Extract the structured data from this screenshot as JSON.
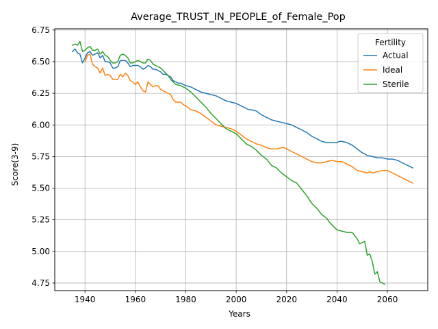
{
  "chart_data": {
    "type": "line",
    "title": "Average_TRUST_IN_PEOPLE_of_Female_Pop",
    "xlabel": "Years",
    "ylabel": "Score(3-9)",
    "xlim": [
      1928,
      2076
    ],
    "ylim": [
      4.69,
      6.76
    ],
    "xticks": [
      1940,
      1960,
      1980,
      2000,
      2020,
      2040,
      2060
    ],
    "yticks": [
      4.75,
      5.0,
      5.25,
      5.5,
      5.75,
      6.0,
      6.25,
      6.5,
      6.75
    ],
    "ytick_labels": [
      "4.75",
      "5.00",
      "5.25",
      "5.50",
      "5.75",
      "6.00",
      "6.25",
      "6.50",
      "6.75"
    ],
    "grid": true,
    "legend": {
      "title": "Fertility",
      "placement": "top-right"
    },
    "series": [
      {
        "name": "Actual",
        "color": "#1f77b4",
        "points": [
          [
            1935,
            6.58
          ],
          [
            1936,
            6.6
          ],
          [
            1937,
            6.57
          ],
          [
            1938,
            6.56
          ],
          [
            1939,
            6.49
          ],
          [
            1940,
            6.53
          ],
          [
            1941,
            6.57
          ],
          [
            1942,
            6.58
          ],
          [
            1943,
            6.55
          ],
          [
            1944,
            6.56
          ],
          [
            1945,
            6.57
          ],
          [
            1946,
            6.53
          ],
          [
            1947,
            6.55
          ],
          [
            1948,
            6.5
          ],
          [
            1949,
            6.5
          ],
          [
            1950,
            6.49
          ],
          [
            1951,
            6.45
          ],
          [
            1952,
            6.45
          ],
          [
            1953,
            6.46
          ],
          [
            1954,
            6.51
          ],
          [
            1955,
            6.51
          ],
          [
            1956,
            6.51
          ],
          [
            1957,
            6.49
          ],
          [
            1958,
            6.46
          ],
          [
            1959,
            6.47
          ],
          [
            1960,
            6.47
          ],
          [
            1961,
            6.47
          ],
          [
            1962,
            6.46
          ],
          [
            1963,
            6.44
          ],
          [
            1964,
            6.45
          ],
          [
            1965,
            6.47
          ],
          [
            1966,
            6.46
          ],
          [
            1967,
            6.44
          ],
          [
            1968,
            6.44
          ],
          [
            1969,
            6.43
          ],
          [
            1970,
            6.42
          ],
          [
            1971,
            6.4
          ],
          [
            1972,
            6.4
          ],
          [
            1973,
            6.39
          ],
          [
            1974,
            6.38
          ],
          [
            1975,
            6.35
          ],
          [
            1976,
            6.34
          ],
          [
            1977,
            6.33
          ],
          [
            1978,
            6.33
          ],
          [
            1979,
            6.32
          ],
          [
            1980,
            6.31
          ],
          [
            1982,
            6.3
          ],
          [
            1984,
            6.28
          ],
          [
            1986,
            6.26
          ],
          [
            1988,
            6.25
          ],
          [
            1990,
            6.24
          ],
          [
            1992,
            6.23
          ],
          [
            1994,
            6.21
          ],
          [
            1995,
            6.2
          ],
          [
            1996,
            6.19
          ],
          [
            1998,
            6.18
          ],
          [
            2000,
            6.17
          ],
          [
            2002,
            6.15
          ],
          [
            2004,
            6.13
          ],
          [
            2005,
            6.12
          ],
          [
            2006,
            6.12
          ],
          [
            2008,
            6.11
          ],
          [
            2010,
            6.08
          ],
          [
            2012,
            6.06
          ],
          [
            2014,
            6.04
          ],
          [
            2016,
            6.03
          ],
          [
            2018,
            6.02
          ],
          [
            2020,
            6.01
          ],
          [
            2022,
            6.0
          ],
          [
            2024,
            5.98
          ],
          [
            2026,
            5.96
          ],
          [
            2028,
            5.94
          ],
          [
            2030,
            5.91
          ],
          [
            2032,
            5.89
          ],
          [
            2034,
            5.87
          ],
          [
            2036,
            5.86
          ],
          [
            2038,
            5.86
          ],
          [
            2040,
            5.86
          ],
          [
            2041,
            5.87
          ],
          [
            2042,
            5.87
          ],
          [
            2044,
            5.86
          ],
          [
            2046,
            5.84
          ],
          [
            2048,
            5.81
          ],
          [
            2050,
            5.78
          ],
          [
            2052,
            5.76
          ],
          [
            2054,
            5.75
          ],
          [
            2056,
            5.74
          ],
          [
            2058,
            5.74
          ],
          [
            2060,
            5.73
          ],
          [
            2062,
            5.73
          ],
          [
            2064,
            5.72
          ],
          [
            2066,
            5.7
          ],
          [
            2068,
            5.68
          ],
          [
            2070,
            5.66
          ]
        ]
      },
      {
        "name": "Ideal",
        "color": "#ff7f0e",
        "points": [
          [
            1940,
            6.5
          ],
          [
            1941,
            6.55
          ],
          [
            1942,
            6.56
          ],
          [
            1943,
            6.48
          ],
          [
            1944,
            6.46
          ],
          [
            1945,
            6.45
          ],
          [
            1946,
            6.41
          ],
          [
            1947,
            6.45
          ],
          [
            1948,
            6.39
          ],
          [
            1949,
            6.4
          ],
          [
            1950,
            6.39
          ],
          [
            1951,
            6.36
          ],
          [
            1952,
            6.36
          ],
          [
            1953,
            6.36
          ],
          [
            1954,
            6.4
          ],
          [
            1955,
            6.38
          ],
          [
            1956,
            6.41
          ],
          [
            1957,
            6.39
          ],
          [
            1958,
            6.35
          ],
          [
            1959,
            6.34
          ],
          [
            1960,
            6.32
          ],
          [
            1961,
            6.34
          ],
          [
            1962,
            6.3
          ],
          [
            1963,
            6.27
          ],
          [
            1964,
            6.26
          ],
          [
            1965,
            6.34
          ],
          [
            1966,
            6.32
          ],
          [
            1967,
            6.3
          ],
          [
            1968,
            6.31
          ],
          [
            1969,
            6.31
          ],
          [
            1970,
            6.28
          ],
          [
            1971,
            6.27
          ],
          [
            1972,
            6.26
          ],
          [
            1973,
            6.25
          ],
          [
            1974,
            6.24
          ],
          [
            1975,
            6.2
          ],
          [
            1976,
            6.18
          ],
          [
            1978,
            6.18
          ],
          [
            1979,
            6.16
          ],
          [
            1980,
            6.15
          ],
          [
            1982,
            6.12
          ],
          [
            1984,
            6.11
          ],
          [
            1986,
            6.09
          ],
          [
            1988,
            6.06
          ],
          [
            1990,
            6.03
          ],
          [
            1992,
            6.0
          ],
          [
            1994,
            5.99
          ],
          [
            1996,
            5.98
          ],
          [
            1998,
            5.97
          ],
          [
            2000,
            5.95
          ],
          [
            2002,
            5.92
          ],
          [
            2004,
            5.89
          ],
          [
            2006,
            5.87
          ],
          [
            2008,
            5.85
          ],
          [
            2010,
            5.84
          ],
          [
            2012,
            5.82
          ],
          [
            2014,
            5.81
          ],
          [
            2016,
            5.81
          ],
          [
            2018,
            5.82
          ],
          [
            2019,
            5.82
          ],
          [
            2020,
            5.81
          ],
          [
            2022,
            5.79
          ],
          [
            2024,
            5.77
          ],
          [
            2026,
            5.75
          ],
          [
            2028,
            5.73
          ],
          [
            2030,
            5.71
          ],
          [
            2032,
            5.7
          ],
          [
            2034,
            5.7
          ],
          [
            2036,
            5.71
          ],
          [
            2038,
            5.72
          ],
          [
            2040,
            5.71
          ],
          [
            2042,
            5.71
          ],
          [
            2044,
            5.69
          ],
          [
            2046,
            5.67
          ],
          [
            2048,
            5.64
          ],
          [
            2050,
            5.63
          ],
          [
            2052,
            5.62
          ],
          [
            2053,
            5.63
          ],
          [
            2054,
            5.62
          ],
          [
            2056,
            5.63
          ],
          [
            2058,
            5.64
          ],
          [
            2060,
            5.64
          ],
          [
            2062,
            5.62
          ],
          [
            2064,
            5.6
          ],
          [
            2066,
            5.58
          ],
          [
            2068,
            5.56
          ],
          [
            2070,
            5.54
          ]
        ]
      },
      {
        "name": "Sterile",
        "color": "#2ca02c",
        "points": [
          [
            1935,
            6.63
          ],
          [
            1936,
            6.64
          ],
          [
            1937,
            6.63
          ],
          [
            1938,
            6.66
          ],
          [
            1939,
            6.58
          ],
          [
            1940,
            6.59
          ],
          [
            1941,
            6.61
          ],
          [
            1942,
            6.62
          ],
          [
            1943,
            6.59
          ],
          [
            1944,
            6.59
          ],
          [
            1945,
            6.6
          ],
          [
            1946,
            6.56
          ],
          [
            1947,
            6.58
          ],
          [
            1948,
            6.55
          ],
          [
            1949,
            6.54
          ],
          [
            1950,
            6.51
          ],
          [
            1951,
            6.49
          ],
          [
            1952,
            6.49
          ],
          [
            1953,
            6.5
          ],
          [
            1954,
            6.55
          ],
          [
            1955,
            6.56
          ],
          [
            1956,
            6.55
          ],
          [
            1957,
            6.53
          ],
          [
            1958,
            6.49
          ],
          [
            1959,
            6.49
          ],
          [
            1960,
            6.5
          ],
          [
            1961,
            6.51
          ],
          [
            1962,
            6.5
          ],
          [
            1963,
            6.49
          ],
          [
            1964,
            6.49
          ],
          [
            1965,
            6.52
          ],
          [
            1966,
            6.51
          ],
          [
            1967,
            6.48
          ],
          [
            1968,
            6.47
          ],
          [
            1969,
            6.46
          ],
          [
            1970,
            6.45
          ],
          [
            1971,
            6.43
          ],
          [
            1972,
            6.41
          ],
          [
            1973,
            6.39
          ],
          [
            1974,
            6.36
          ],
          [
            1975,
            6.34
          ],
          [
            1976,
            6.32
          ],
          [
            1978,
            6.31
          ],
          [
            1980,
            6.29
          ],
          [
            1982,
            6.26
          ],
          [
            1984,
            6.22
          ],
          [
            1986,
            6.18
          ],
          [
            1988,
            6.14
          ],
          [
            1990,
            6.09
          ],
          [
            1992,
            6.05
          ],
          [
            1994,
            6.01
          ],
          [
            1996,
            5.97
          ],
          [
            1998,
            5.95
          ],
          [
            2000,
            5.93
          ],
          [
            2002,
            5.89
          ],
          [
            2004,
            5.85
          ],
          [
            2006,
            5.83
          ],
          [
            2008,
            5.8
          ],
          [
            2010,
            5.76
          ],
          [
            2012,
            5.73
          ],
          [
            2014,
            5.68
          ],
          [
            2016,
            5.66
          ],
          [
            2018,
            5.62
          ],
          [
            2020,
            5.59
          ],
          [
            2022,
            5.56
          ],
          [
            2024,
            5.54
          ],
          [
            2026,
            5.49
          ],
          [
            2028,
            5.44
          ],
          [
            2030,
            5.38
          ],
          [
            2032,
            5.34
          ],
          [
            2034,
            5.29
          ],
          [
            2036,
            5.26
          ],
          [
            2037,
            5.23
          ],
          [
            2038,
            5.21
          ],
          [
            2040,
            5.17
          ],
          [
            2042,
            5.16
          ],
          [
            2044,
            5.15
          ],
          [
            2046,
            5.15
          ],
          [
            2048,
            5.1
          ],
          [
            2049,
            5.06
          ],
          [
            2050,
            5.07
          ],
          [
            2051,
            5.08
          ],
          [
            2052,
            4.97
          ],
          [
            2053,
            4.98
          ],
          [
            2054,
            4.92
          ],
          [
            2055,
            4.82
          ],
          [
            2056,
            4.84
          ],
          [
            2057,
            4.76
          ],
          [
            2058,
            4.75
          ],
          [
            2059,
            4.74
          ]
        ]
      }
    ]
  }
}
